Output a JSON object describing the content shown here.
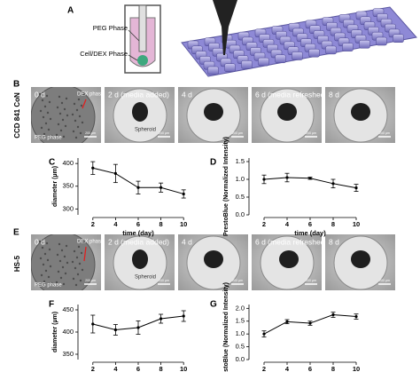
{
  "panels": {
    "a": {
      "label": "A",
      "peg_phase": "PEG Phase",
      "dex_phase": "Cell/DEX Phase"
    },
    "b": {
      "label": "B",
      "row_label": "CCD 841 CoN",
      "images": [
        {
          "day": "0 d",
          "notes": [
            "DEX phase",
            "PEG phase"
          ],
          "scale": "200 µm"
        },
        {
          "day": "2 d (media added)",
          "notes": [
            "Spheroid"
          ],
          "scale": "200 µm"
        },
        {
          "day": "4 d",
          "scale": "200 µm"
        },
        {
          "day": "6 d (media refreshed)",
          "scale": "200 µm"
        },
        {
          "day": "8 d",
          "scale": "200 µm"
        }
      ]
    },
    "e": {
      "label": "E",
      "row_label": "HS-5",
      "images": [
        {
          "day": "0 d",
          "notes": [
            "DEX phase",
            "PEG phase"
          ],
          "scale": "200 µm"
        },
        {
          "day": "2 d (media added)",
          "notes": [
            "Spheroid"
          ],
          "scale": "200 µm"
        },
        {
          "day": "4 d",
          "scale": "200 µm"
        },
        {
          "day": "6 d (media refreshed)",
          "scale": "200 µm"
        },
        {
          "day": "8 d",
          "scale": "200 µm"
        }
      ]
    }
  },
  "chart_data": [
    {
      "panel": "C",
      "type": "line",
      "xlabel": "time (day)",
      "ylabel": "diameter (µm)",
      "x": [
        2,
        4,
        6,
        8,
        10
      ],
      "values": [
        390,
        378,
        347,
        347,
        333
      ],
      "errors": [
        14,
        20,
        14,
        10,
        9
      ],
      "xlim": [
        1,
        11
      ],
      "xticks": [
        2,
        4,
        6,
        8,
        10
      ],
      "ylim": [
        287,
        412
      ],
      "yticks": [
        300,
        350,
        400
      ],
      "color": "#000000"
    },
    {
      "panel": "D",
      "type": "line",
      "xlabel": "time (day)",
      "ylabel": "PrestoBlue (Normalized Intensity)",
      "x": [
        2,
        4,
        6,
        8,
        10
      ],
      "values": [
        1.0,
        1.05,
        1.03,
        0.88,
        0.76
      ],
      "errors": [
        0.12,
        0.12,
        0.03,
        0.12,
        0.1
      ],
      "xlim": [
        1,
        11
      ],
      "xticks": [
        2,
        4,
        6,
        8,
        10
      ],
      "ylim": [
        0,
        1.6
      ],
      "yticks": [
        {
          "value": 0,
          "label": "0.0"
        },
        0.5,
        {
          "value": 1,
          "label": "1.0"
        },
        1.5
      ],
      "color": "#000000"
    },
    {
      "panel": "F",
      "type": "line",
      "xlabel": "time (day)",
      "ylabel": "diameter (µm)",
      "x": [
        2,
        4,
        6,
        8,
        10
      ],
      "values": [
        418,
        405,
        410,
        430,
        436
      ],
      "errors": [
        20,
        12,
        15,
        10,
        12
      ],
      "xlim": [
        1,
        11
      ],
      "xticks": [
        2,
        4,
        6,
        8,
        10
      ],
      "ylim": [
        338,
        462
      ],
      "yticks": [
        350,
        400,
        450
      ],
      "color": "#000000"
    },
    {
      "panel": "G",
      "type": "line",
      "xlabel": "time (day)",
      "ylabel": "PrestoBlue (Normalized Intensity)",
      "x": [
        2,
        4,
        6,
        8,
        10
      ],
      "values": [
        1.0,
        1.48,
        1.42,
        1.75,
        1.68
      ],
      "errors": [
        0.12,
        0.08,
        0.08,
        0.1,
        0.1
      ],
      "xlim": [
        1,
        11
      ],
      "xticks": [
        2,
        4,
        6,
        8,
        10
      ],
      "ylim": [
        0,
        2.15
      ],
      "yticks": [
        {
          "value": 0,
          "label": "0.0"
        },
        0.5,
        {
          "value": 1,
          "label": "1.0"
        },
        1.5,
        {
          "value": 2,
          "label": "2.0"
        }
      ],
      "color": "#000000"
    }
  ]
}
